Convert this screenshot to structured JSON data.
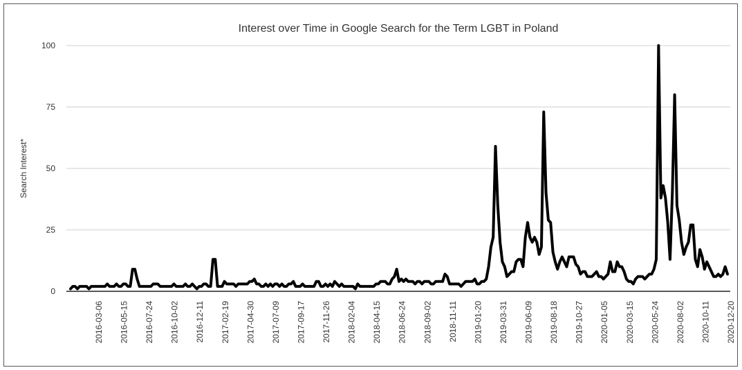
{
  "chart_data": {
    "type": "line",
    "title": "Interest over Time in Google Search for the Term LGBT in Poland",
    "xlabel": "",
    "ylabel": "Search Interest*",
    "ylim": [
      0,
      100
    ],
    "yticks": [
      0,
      25,
      50,
      75,
      100
    ],
    "xtick_labels": [
      "2016-03-06",
      "2016-05-15",
      "2016-07-24",
      "2016-10-02",
      "2016-12-11",
      "2017-02-19",
      "2017-04-30",
      "2017-07-09",
      "2017-09-17",
      "2017-11-26",
      "2018-02-04",
      "2018-04-15",
      "2018-06-24",
      "2018-09-02",
      "2018-11-11",
      "2019-01-20",
      "2019-03-31",
      "2019-06-09",
      "2019-08-18",
      "2019-10-27",
      "2020-01-05",
      "2020-03-15",
      "2020-05-24",
      "2020-08-02",
      "2020-10-11",
      "2020-12-20"
    ],
    "grid": true,
    "series": [
      {
        "color": "#000000",
        "values": [
          1,
          2,
          2,
          1,
          2,
          2,
          2,
          2,
          1,
          2,
          2,
          2,
          2,
          2,
          2,
          2,
          3,
          2,
          2,
          2,
          3,
          2,
          2,
          3,
          3,
          2,
          2,
          9,
          9,
          5,
          2,
          2,
          2,
          2,
          2,
          2,
          3,
          3,
          3,
          2,
          2,
          2,
          2,
          2,
          2,
          3,
          2,
          2,
          2,
          2,
          3,
          2,
          2,
          3,
          2,
          1,
          2,
          2,
          3,
          3,
          2,
          2,
          13,
          13,
          2,
          2,
          2,
          4,
          3,
          3,
          3,
          3,
          2,
          3,
          3,
          3,
          3,
          3,
          4,
          4,
          5,
          3,
          3,
          2,
          2,
          3,
          2,
          3,
          2,
          3,
          3,
          2,
          3,
          2,
          2,
          3,
          3,
          4,
          2,
          2,
          2,
          3,
          2,
          2,
          2,
          2,
          2,
          4,
          4,
          2,
          2,
          3,
          2,
          3,
          2,
          4,
          3,
          2,
          3,
          2,
          2,
          2,
          2,
          2,
          1,
          3,
          2,
          2,
          2,
          2,
          2,
          2,
          2,
          3,
          3,
          4,
          4,
          4,
          3,
          3,
          5,
          6,
          9,
          4,
          5,
          4,
          5,
          4,
          4,
          4,
          3,
          4,
          4,
          3,
          4,
          4,
          4,
          3,
          3,
          4,
          4,
          4,
          4,
          7,
          6,
          3,
          3,
          3,
          3,
          3,
          2,
          3,
          4,
          4,
          4,
          4,
          5,
          3,
          3,
          4,
          4,
          5,
          10,
          18,
          22,
          59,
          35,
          20,
          12,
          10,
          6,
          7,
          8,
          8,
          12,
          13,
          13,
          10,
          22,
          28,
          22,
          20,
          22,
          20,
          15,
          18,
          73,
          40,
          29,
          28,
          16,
          12,
          9,
          12,
          14,
          12,
          10,
          14,
          14,
          14,
          11,
          10,
          7,
          8,
          8,
          6,
          6,
          6,
          7,
          8,
          6,
          6,
          5,
          6,
          7,
          12,
          8,
          8,
          12,
          10,
          10,
          8,
          5,
          4,
          4,
          3,
          5,
          6,
          6,
          6,
          5,
          6,
          7,
          7,
          9,
          13,
          100,
          38,
          43,
          38,
          28,
          13,
          40,
          80,
          35,
          29,
          20,
          15,
          18,
          20,
          27,
          27,
          13,
          10,
          17,
          14,
          9,
          12,
          10,
          8,
          6,
          6,
          7,
          6,
          7,
          10,
          7
        ]
      }
    ]
  }
}
